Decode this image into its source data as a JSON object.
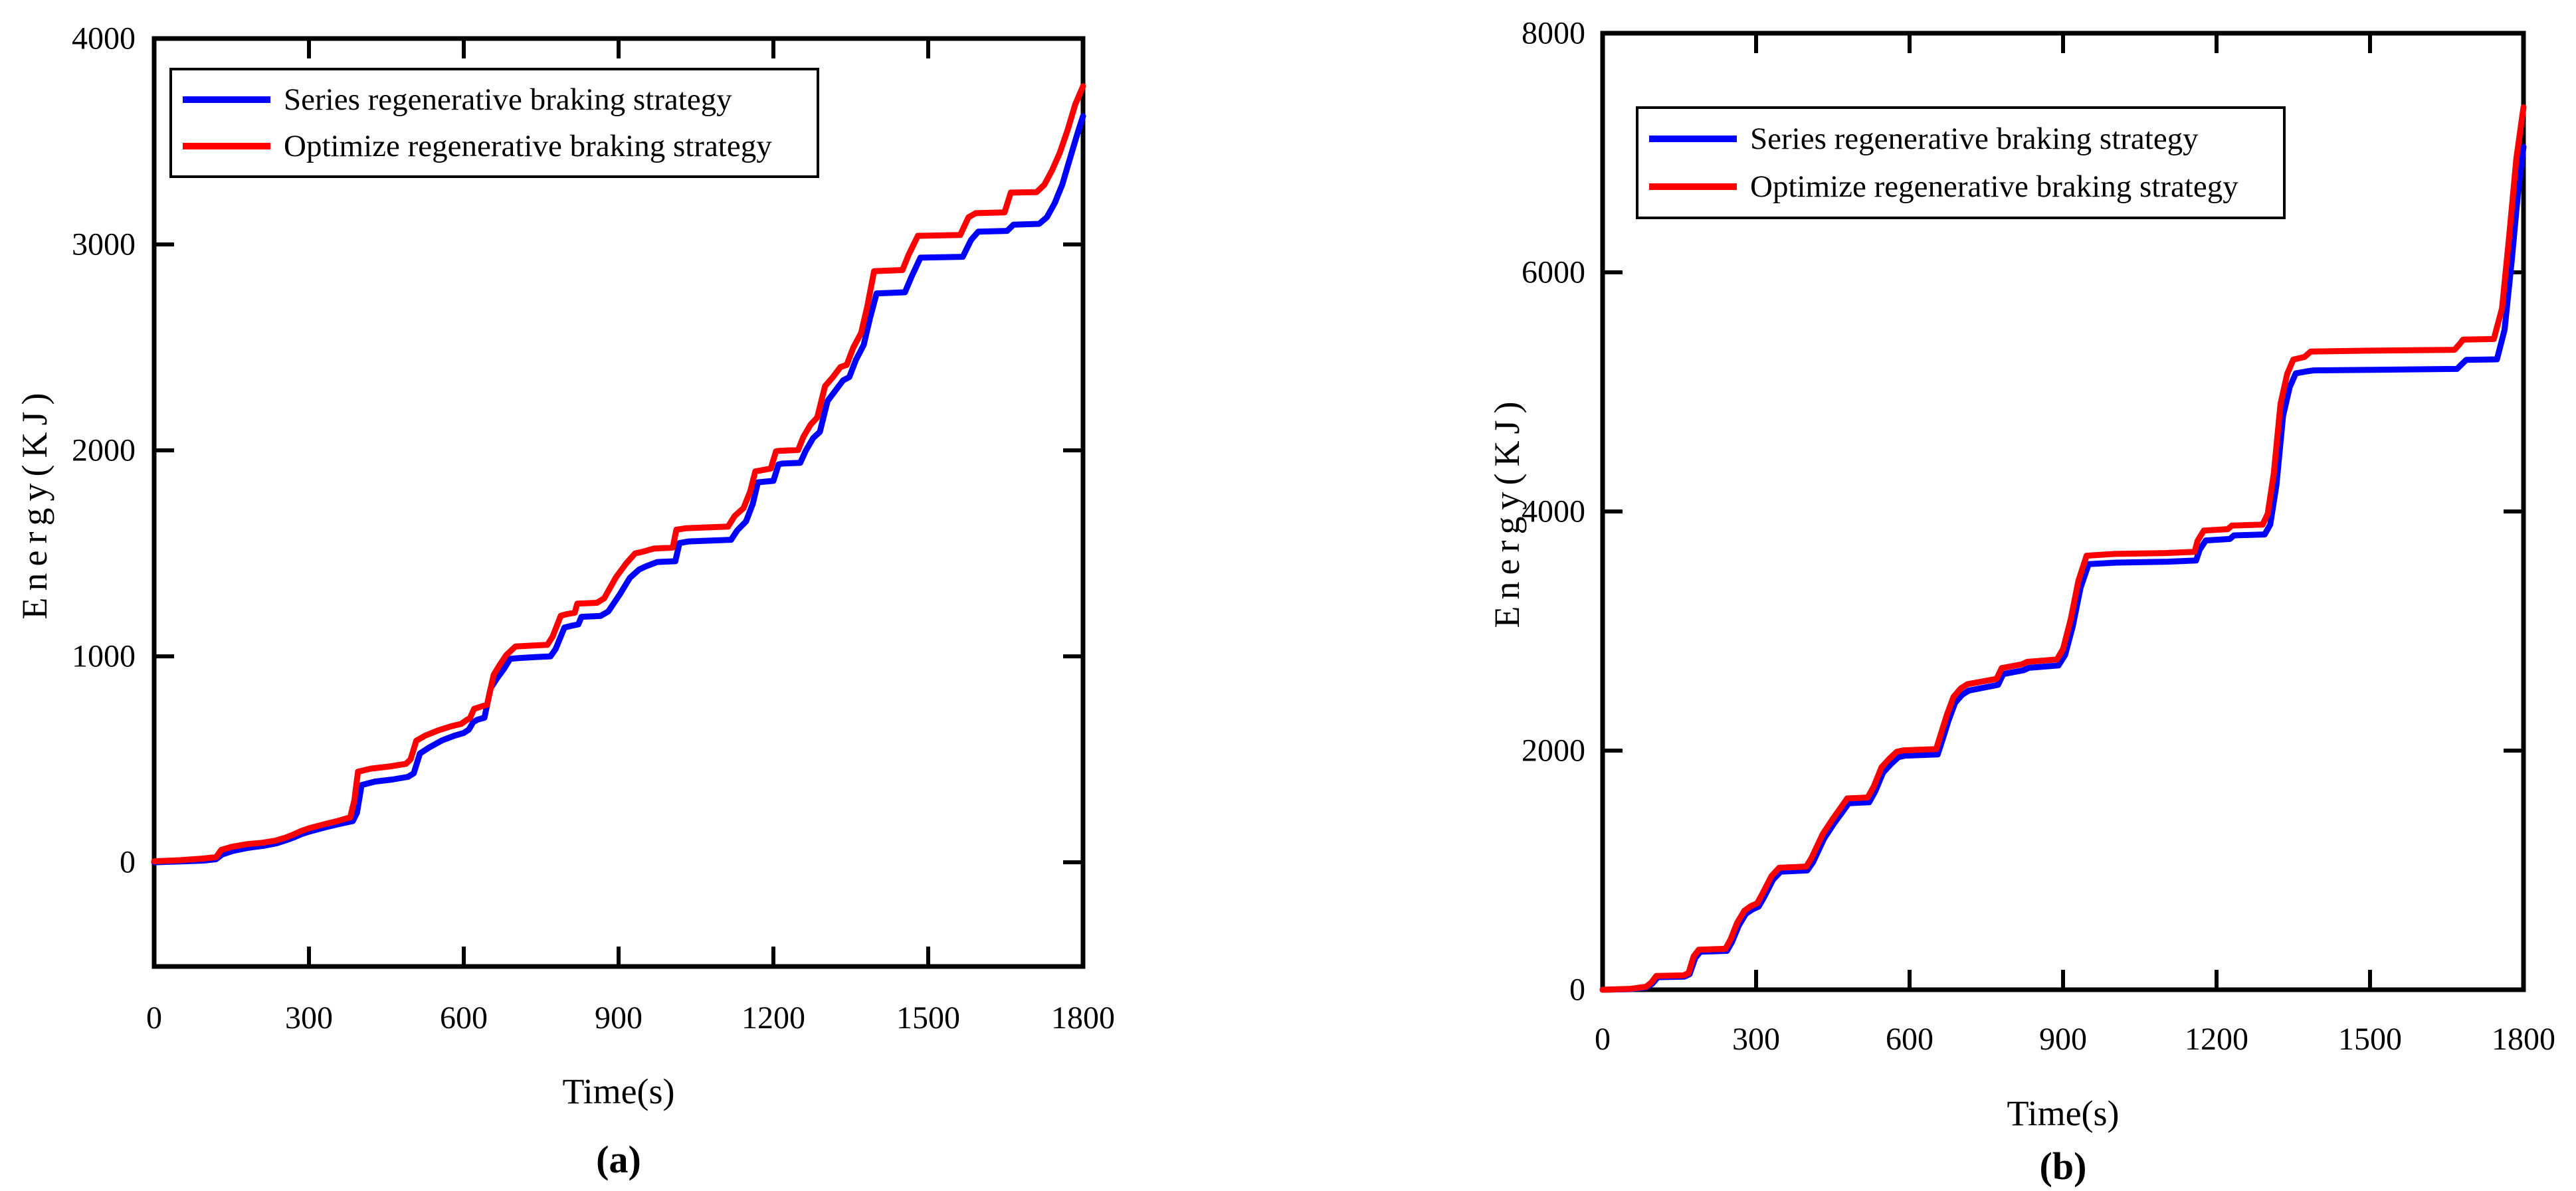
{
  "figure": {
    "background": "#ffffff",
    "axis_color": "#000000"
  },
  "charts": [
    {
      "caption": "(a)",
      "xlabel": "Time(s)",
      "ylabel": "Energy(KJ)",
      "legend": [
        {
          "label": "Series regenerative braking strategy",
          "color": "#0000FF"
        },
        {
          "label": "Optimize regenerative braking strategy",
          "color": "#FF0000"
        }
      ]
    },
    {
      "caption": "(b)",
      "xlabel": "Time(s)",
      "ylabel": "Energy(KJ)",
      "legend": [
        {
          "label": "Series regenerative braking strategy",
          "color": "#0000FF"
        },
        {
          "label": "Optimize regenerative braking strategy",
          "color": "#FF0000"
        }
      ]
    }
  ],
  "chart_data": [
    {
      "type": "line",
      "title": "",
      "xlabel": "Time(s)",
      "ylabel": "Energy(KJ)",
      "xlim": [
        0,
        1800
      ],
      "ylim": [
        -506,
        4000
      ],
      "xticks": [
        0,
        300,
        600,
        900,
        1200,
        1500,
        1800
      ],
      "yticks": [
        0,
        1000,
        2000,
        3000,
        4000
      ],
      "grid": false,
      "legend_position": "upper-left",
      "series": [
        {
          "name": "Series regenerative braking strategy",
          "color": "#0000FF",
          "x": [
            0,
            50,
            95,
            120,
            132,
            152,
            182,
            212,
            237,
            257,
            272,
            287,
            302,
            332,
            357,
            385,
            393,
            402,
            428,
            462,
            492,
            503,
            515,
            532,
            558,
            582,
            600,
            610,
            618,
            626,
            640,
            652,
            665,
            678,
            690,
            708,
            738,
            768,
            778,
            795,
            808,
            822,
            828,
            865,
            880,
            902,
            922,
            940,
            953,
            975,
            1010,
            1018,
            1036,
            1076,
            1118,
            1130,
            1147,
            1160,
            1170,
            1200,
            1210,
            1217,
            1252,
            1263,
            1277,
            1290,
            1305,
            1320,
            1335,
            1347,
            1360,
            1375,
            1387,
            1400,
            1455,
            1467,
            1485,
            1567,
            1583,
            1597,
            1653,
            1665,
            1715,
            1730,
            1745,
            1760,
            1775,
            1790,
            1800
          ],
          "y": [
            0,
            4,
            8,
            15,
            38,
            55,
            70,
            80,
            92,
            108,
            122,
            138,
            150,
            170,
            185,
            200,
            240,
            375,
            392,
            402,
            415,
            432,
            528,
            556,
            592,
            615,
            628,
            645,
            680,
            692,
            702,
            845,
            895,
            940,
            988,
            992,
            996,
            1000,
            1035,
            1140,
            1148,
            1155,
            1192,
            1196,
            1218,
            1300,
            1382,
            1422,
            1437,
            1458,
            1462,
            1550,
            1558,
            1562,
            1566,
            1612,
            1655,
            1740,
            1845,
            1852,
            1932,
            1936,
            1940,
            2000,
            2060,
            2090,
            2240,
            2290,
            2340,
            2356,
            2440,
            2512,
            2640,
            2762,
            2768,
            2840,
            2936,
            2940,
            3022,
            3062,
            3066,
            3096,
            3100,
            3132,
            3200,
            3292,
            3420,
            3545,
            3623
          ]
        },
        {
          "name": "Optimize regenerative braking strategy",
          "color": "#FF0000",
          "x": [
            0,
            50,
            95,
            120,
            130,
            150,
            180,
            210,
            235,
            255,
            270,
            285,
            300,
            330,
            355,
            380,
            388,
            395,
            420,
            455,
            488,
            497,
            508,
            525,
            550,
            575,
            595,
            605,
            612,
            620,
            632,
            645,
            658,
            670,
            682,
            700,
            730,
            762,
            772,
            788,
            800,
            815,
            820,
            858,
            872,
            895,
            915,
            932,
            945,
            968,
            1005,
            1012,
            1030,
            1070,
            1112,
            1125,
            1142,
            1155,
            1165,
            1195,
            1205,
            1212,
            1248,
            1258,
            1272,
            1285,
            1300,
            1315,
            1330,
            1342,
            1355,
            1370,
            1382,
            1395,
            1450,
            1462,
            1480,
            1562,
            1578,
            1592,
            1648,
            1660,
            1710,
            1725,
            1740,
            1755,
            1770,
            1785,
            1800
          ],
          "y": [
            5,
            10,
            18,
            25,
            60,
            75,
            88,
            95,
            105,
            120,
            135,
            152,
            165,
            185,
            200,
            218,
            300,
            440,
            455,
            465,
            478,
            500,
            590,
            615,
            640,
            660,
            672,
            690,
            700,
            745,
            755,
            765,
            910,
            960,
            1005,
            1048,
            1052,
            1056,
            1095,
            1197,
            1205,
            1212,
            1256,
            1260,
            1282,
            1384,
            1452,
            1500,
            1507,
            1523,
            1528,
            1615,
            1622,
            1626,
            1630,
            1682,
            1720,
            1800,
            1898,
            1912,
            1995,
            1998,
            2002,
            2065,
            2125,
            2160,
            2312,
            2355,
            2405,
            2415,
            2500,
            2570,
            2700,
            2870,
            2876,
            2950,
            3042,
            3046,
            3132,
            3152,
            3156,
            3252,
            3254,
            3290,
            3360,
            3445,
            3555,
            3680,
            3768
          ]
        }
      ]
    },
    {
      "type": "line",
      "title": "",
      "xlabel": "Time(s)",
      "ylabel": "Energy(KJ)",
      "xlim": [
        0,
        1800
      ],
      "ylim": [
        0,
        8000
      ],
      "xticks": [
        0,
        300,
        600,
        900,
        1200,
        1500,
        1800
      ],
      "yticks": [
        0,
        2000,
        4000,
        6000,
        8000
      ],
      "grid": false,
      "legend_position": "upper-left",
      "series": [
        {
          "name": "Series regenerative braking strategy",
          "color": "#0000FF",
          "x": [
            0,
            55,
            85,
            97,
            108,
            160,
            170,
            181,
            191,
            243,
            253,
            266,
            280,
            293,
            305,
            315,
            333,
            348,
            400,
            411,
            433,
            453,
            468,
            481,
            521,
            533,
            548,
            563,
            578,
            591,
            655,
            665,
            676,
            689,
            703,
            716,
            773,
            783,
            823,
            833,
            891,
            904,
            919,
            934,
            950,
            1004,
            1104,
            1160,
            1167,
            1179,
            1226,
            1234,
            1294,
            1305,
            1317,
            1330,
            1343,
            1355,
            1377,
            1390,
            1505,
            1670,
            1680,
            1688,
            1748,
            1763,
            1777,
            1790,
            1800
          ],
          "y": [
            0,
            5,
            20,
            50,
            105,
            110,
            130,
            265,
            318,
            325,
            400,
            535,
            635,
            672,
            695,
            770,
            920,
            988,
            998,
            1065,
            1265,
            1395,
            1482,
            1560,
            1568,
            1660,
            1815,
            1885,
            1945,
            1958,
            1968,
            2100,
            2250,
            2400,
            2468,
            2502,
            2550,
            2640,
            2672,
            2692,
            2712,
            2800,
            3040,
            3360,
            3560,
            3572,
            3580,
            3590,
            3680,
            3758,
            3770,
            3800,
            3808,
            3890,
            4220,
            4800,
            5040,
            5155,
            5172,
            5180,
            5185,
            5192,
            5235,
            5268,
            5272,
            5520,
            6100,
            6700,
            7050
          ]
        },
        {
          "name": "Optimize regenerative braking strategy",
          "color": "#FF0000",
          "x": [
            0,
            55,
            85,
            95,
            105,
            158,
            168,
            178,
            188,
            240,
            250,
            263,
            277,
            290,
            302,
            312,
            330,
            345,
            398,
            408,
            430,
            450,
            465,
            478,
            518,
            530,
            545,
            560,
            575,
            588,
            652,
            662,
            673,
            686,
            700,
            713,
            770,
            780,
            820,
            830,
            888,
            900,
            915,
            930,
            946,
            1000,
            1100,
            1157,
            1163,
            1175,
            1222,
            1230,
            1290,
            1300,
            1312,
            1325,
            1338,
            1350,
            1372,
            1384,
            1500,
            1665,
            1675,
            1682,
            1742,
            1758,
            1772,
            1786,
            1800
          ],
          "y": [
            0,
            8,
            25,
            60,
            115,
            120,
            140,
            280,
            335,
            342,
            420,
            560,
            660,
            700,
            722,
            800,
            950,
            1020,
            1030,
            1100,
            1300,
            1430,
            1520,
            1600,
            1608,
            1700,
            1860,
            1930,
            1990,
            2002,
            2012,
            2150,
            2300,
            2450,
            2520,
            2555,
            2600,
            2690,
            2722,
            2742,
            2762,
            2850,
            3100,
            3420,
            3630,
            3645,
            3652,
            3662,
            3755,
            3840,
            3852,
            3882,
            3890,
            3980,
            4320,
            4900,
            5150,
            5270,
            5292,
            5338,
            5345,
            5352,
            5400,
            5438,
            5442,
            5700,
            6300,
            6950,
            7380
          ]
        }
      ]
    }
  ]
}
